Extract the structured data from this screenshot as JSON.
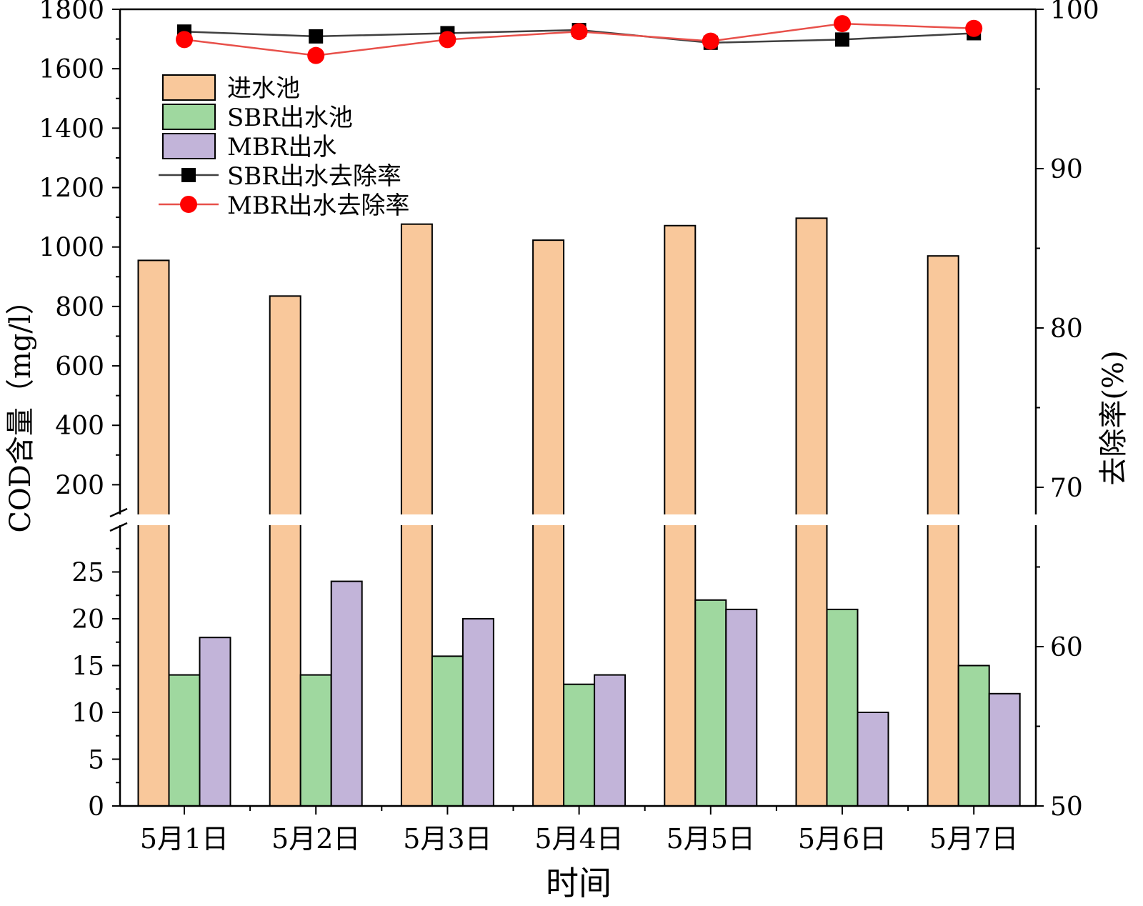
{
  "chart_data": {
    "type": "bar",
    "categories": [
      "5月1日",
      "5月2日",
      "5月3日",
      "5月4日",
      "5月5日",
      "5月6日",
      "5月7日"
    ],
    "xlabel": "时间",
    "ylabel": "COD含量（mg/l）",
    "y2label": "去除率(%)",
    "y_axis_break": {
      "lower_range": [
        0,
        30
      ],
      "upper_range": [
        100,
        1800
      ]
    },
    "y_lower_ticks": [
      "0",
      "5",
      "10",
      "15",
      "20",
      "25"
    ],
    "y_upper_ticks": [
      "200",
      "400",
      "600",
      "800",
      "1000",
      "1200",
      "1400",
      "1600",
      "1800"
    ],
    "y2lim": [
      50,
      100
    ],
    "y2_ticks": [
      "50",
      "60",
      "70",
      "80",
      "90",
      "100"
    ],
    "legend_position": "top-left",
    "grid": false,
    "series": [
      {
        "name": "进水池",
        "kind": "bar",
        "color": "#f9c89b",
        "values": [
          955,
          835,
          1077,
          1023,
          1072,
          1097,
          970
        ]
      },
      {
        "name": "SBR出水池",
        "kind": "bar",
        "color": "#9fd89f",
        "values": [
          14,
          14,
          16,
          13,
          22,
          21,
          15
        ]
      },
      {
        "name": "MBR出水",
        "kind": "bar",
        "color": "#c2b4d9",
        "values": [
          18,
          24,
          20,
          14,
          21,
          10,
          12
        ]
      },
      {
        "name": "SBR出水去除率",
        "kind": "line",
        "axis": "right",
        "color": "#404040",
        "marker": "square",
        "values": [
          98.6,
          98.3,
          98.5,
          98.7,
          97.9,
          98.1,
          98.5
        ]
      },
      {
        "name": "MBR出水去除率",
        "kind": "line",
        "axis": "right",
        "color": "#e8504a",
        "marker": "circle",
        "values": [
          98.1,
          97.1,
          98.1,
          98.6,
          98.0,
          99.1,
          98.8
        ]
      }
    ]
  }
}
